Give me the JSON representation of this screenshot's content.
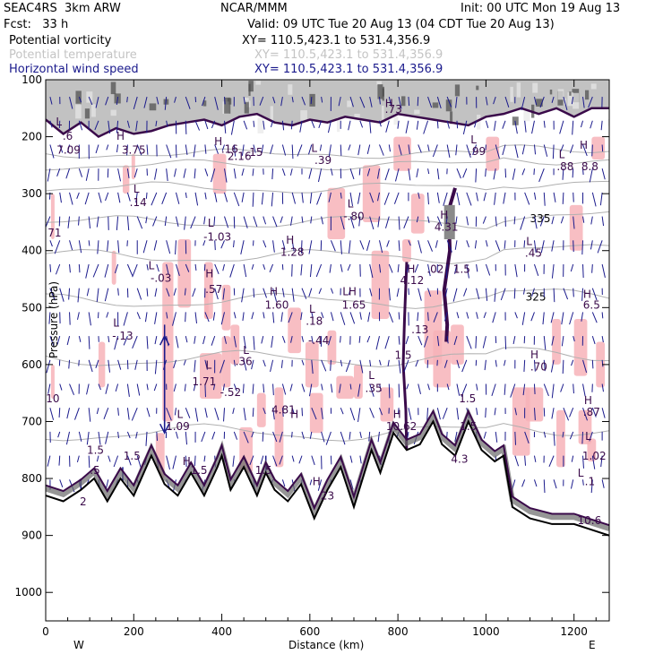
{
  "header": {
    "model": "SEAC4RS  3km ARW",
    "org": "NCAR/MMM",
    "init": "Init: 00 UTC Mon 19 Aug 13",
    "fcst": "Fcst:   33 h",
    "valid": "Valid: 09 UTC Tue 20 Aug 13 (04 CDT Tue 20 Aug 13)"
  },
  "fields": [
    {
      "name": "Potential vorticity",
      "xy": "XY= 110.5,423.1 to 531.4,356.9",
      "color": "#000000"
    },
    {
      "name": "Potential temperature",
      "xy": "XY= 110.5,423.1 to 531.4,356.9",
      "color": "#c4c4c4"
    },
    {
      "name": "Horizontal wind speed",
      "xy": "XY= 110.5,423.1 to 531.4,356.9",
      "color": "#1a1a8c"
    }
  ],
  "chart_data": {
    "type": "cross-section",
    "title": "SEAC4RS 3km ARW cross section",
    "xlabel": "Distance (km)",
    "ylabel": "Pressure (hPa)",
    "xlim": [
      0,
      1280
    ],
    "ylim": [
      100,
      1050
    ],
    "x_ticks": [
      0,
      200,
      400,
      600,
      800,
      1000,
      1200
    ],
    "y_ticks": [
      100,
      200,
      300,
      400,
      500,
      600,
      700,
      800,
      900,
      1000
    ],
    "endpoints": {
      "left": "W",
      "right": "E"
    },
    "theta_contours": [
      {
        "value": 335,
        "label": "335",
        "x": 1100,
        "p": 350
      },
      {
        "value": 325,
        "label": "325",
        "x": 1090,
        "p": 488
      }
    ],
    "terrain": {
      "x": [
        0,
        40,
        80,
        110,
        140,
        170,
        200,
        240,
        270,
        300,
        330,
        360,
        390,
        400,
        420,
        450,
        480,
        500,
        520,
        550,
        580,
        610,
        640,
        670,
        700,
        720,
        740,
        760,
        790,
        820,
        850,
        880,
        900,
        930,
        960,
        990,
        1020,
        1040,
        1060,
        1100,
        1150,
        1200,
        1240,
        1280
      ],
      "p": [
        830,
        840,
        820,
        800,
        840,
        800,
        830,
        760,
        810,
        830,
        790,
        830,
        780,
        760,
        820,
        780,
        830,
        790,
        820,
        840,
        810,
        870,
        820,
        780,
        850,
        800,
        750,
        790,
        720,
        750,
        740,
        700,
        740,
        760,
        700,
        750,
        770,
        760,
        850,
        870,
        880,
        880,
        890,
        900
      ]
    },
    "tropopause_pv": {
      "x": [
        0,
        40,
        80,
        120,
        160,
        200,
        240,
        280,
        320,
        360,
        400,
        440,
        480,
        520,
        560,
        600,
        640,
        680,
        720,
        760,
        800,
        840,
        880,
        920,
        960,
        1000,
        1040,
        1080,
        1120,
        1160,
        1200,
        1240,
        1280
      ],
      "p": [
        170,
        195,
        175,
        200,
        185,
        195,
        190,
        180,
        175,
        170,
        180,
        165,
        160,
        175,
        180,
        170,
        175,
        165,
        170,
        175,
        160,
        165,
        170,
        175,
        180,
        165,
        160,
        150,
        160,
        150,
        165,
        150,
        150
      ]
    },
    "pv_labels": [
      {
        "t": "L",
        "x": 30,
        "p": 180
      },
      {
        "t": ".6",
        "x": 50,
        "p": 205
      },
      {
        "t": "7.09",
        "x": 52,
        "p": 230
      },
      {
        "t": "H",
        "x": 170,
        "p": 205
      },
      {
        "t": "3.75",
        "x": 200,
        "p": 230
      },
      {
        "t": "L",
        "x": 206,
        "p": 298
      },
      {
        "t": ".14",
        "x": 210,
        "p": 322
      },
      {
        "t": "H",
        "x": 392,
        "p": 215
      },
      {
        "t": ".16",
        "x": 418,
        "p": 228
      },
      {
        "t": "2.16",
        "x": 440,
        "p": 241
      },
      {
        "t": ".15",
        "x": 474,
        "p": 234
      },
      {
        "t": "L",
        "x": 610,
        "p": 227
      },
      {
        "t": ".39",
        "x": 630,
        "p": 248
      },
      {
        "t": "H",
        "x": 780,
        "p": 148
      },
      {
        "t": ".73",
        "x": 790,
        "p": 158
      },
      {
        "t": "L",
        "x": 972,
        "p": 212
      },
      {
        "t": ".99",
        "x": 980,
        "p": 232
      },
      {
        "t": "L",
        "x": 1172,
        "p": 238
      },
      {
        "t": ".88",
        "x": 1180,
        "p": 259
      },
      {
        "t": "H",
        "x": 1222,
        "p": 221
      },
      {
        "t": "8.8",
        "x": 1236,
        "p": 259
      },
      {
        "t": "L",
        "x": 692,
        "p": 324
      },
      {
        "t": "-.80",
        "x": 700,
        "p": 346
      },
      {
        "t": "H",
        "x": 905,
        "p": 344
      },
      {
        "t": "4.31",
        "x": 910,
        "p": 365
      },
      {
        "t": "L",
        "x": 375,
        "p": 358
      },
      {
        "t": "-1.03",
        "x": 390,
        "p": 382
      },
      {
        "t": "H",
        "x": 555,
        "p": 388
      },
      {
        "t": "1.28",
        "x": 560,
        "p": 409
      },
      {
        "t": "L",
        "x": 1098,
        "p": 390
      },
      {
        "t": ".45",
        "x": 1108,
        "p": 411
      },
      {
        "t": "L",
        "x": 240,
        "p": 433
      },
      {
        "t": "-.03",
        "x": 262,
        "p": 455
      },
      {
        "t": "H",
        "x": 372,
        "p": 447
      },
      {
        "t": ".57",
        "x": 382,
        "p": 474
      },
      {
        "t": "H",
        "x": 830,
        "p": 439
      },
      {
        "t": "4.12",
        "x": 832,
        "p": 459
      },
      {
        "t": ".02",
        "x": 885,
        "p": 439
      },
      {
        "t": "1.5",
        "x": 945,
        "p": 439
      },
      {
        "t": "H",
        "x": 518,
        "p": 478
      },
      {
        "t": "1.60",
        "x": 525,
        "p": 502
      },
      {
        "t": "LH",
        "x": 690,
        "p": 478
      },
      {
        "t": "1.65",
        "x": 700,
        "p": 502
      },
      {
        "t": "L",
        "x": 605,
        "p": 509
      },
      {
        "t": ".18",
        "x": 610,
        "p": 530
      },
      {
        "t": "H",
        "x": 1230,
        "p": 483
      },
      {
        "t": "6.5",
        "x": 1240,
        "p": 502
      },
      {
        "t": "L",
        "x": 160,
        "p": 533
      },
      {
        "t": "-.13",
        "x": 175,
        "p": 556
      },
      {
        "t": ".13",
        "x": 850,
        "p": 545
      },
      {
        "t": "-.44",
        "x": 620,
        "p": 564
      },
      {
        "t": "L",
        "x": 455,
        "p": 581
      },
      {
        "t": ".36",
        "x": 450,
        "p": 601
      },
      {
        "t": "1.5",
        "x": 812,
        "p": 590
      },
      {
        "t": "L",
        "x": 370,
        "p": 607
      },
      {
        "t": "1.71",
        "x": 360,
        "p": 636
      },
      {
        "t": "L",
        "x": 740,
        "p": 625
      },
      {
        "t": ".35",
        "x": 745,
        "p": 648
      },
      {
        "t": "H",
        "x": 1110,
        "p": 589
      },
      {
        "t": ".70",
        "x": 1120,
        "p": 610
      },
      {
        "t": "-.52",
        "x": 420,
        "p": 655
      },
      {
        "t": "10",
        "x": 16,
        "p": 666
      },
      {
        "t": "1.5",
        "x": 958,
        "p": 666
      },
      {
        "t": "L",
        "x": 305,
        "p": 694
      },
      {
        "t": "1.09",
        "x": 300,
        "p": 715
      },
      {
        "t": "H",
        "x": 565,
        "p": 694
      },
      {
        "t": "4.81",
        "x": 540,
        "p": 686
      },
      {
        "t": "H",
        "x": 798,
        "p": 694
      },
      {
        "t": "10.62",
        "x": 808,
        "p": 715
      },
      {
        "t": "1.5",
        "x": 960,
        "p": 715
      },
      {
        "t": "H",
        "x": 1232,
        "p": 669
      },
      {
        "t": ".87",
        "x": 1240,
        "p": 690
      },
      {
        "t": "L",
        "x": 1232,
        "p": 732
      },
      {
        "t": "1.02",
        "x": 1246,
        "p": 767
      },
      {
        "t": "H",
        "x": 320,
        "p": 776
      },
      {
        "t": "1.5",
        "x": 348,
        "p": 792
      },
      {
        "t": "1.5",
        "x": 196,
        "p": 767
      },
      {
        "t": "1.5",
        "x": 113,
        "p": 757
      },
      {
        "t": ".5",
        "x": 112,
        "p": 792
      },
      {
        "t": "1.5",
        "x": 495,
        "p": 792
      },
      {
        "t": "H",
        "x": 615,
        "p": 812
      },
      {
        "t": "23",
        "x": 640,
        "p": 837
      },
      {
        "t": "4.3",
        "x": 940,
        "p": 772
      },
      {
        "t": "L",
        "x": 1215,
        "p": 797
      },
      {
        "t": ".1",
        "x": 1236,
        "p": 812
      },
      {
        "t": "2",
        "x": 85,
        "p": 847
      },
      {
        "t": "10.6",
        "x": 1235,
        "p": 880
      },
      {
        "t": "71",
        "x": 20,
        "p": 375
      }
    ]
  }
}
